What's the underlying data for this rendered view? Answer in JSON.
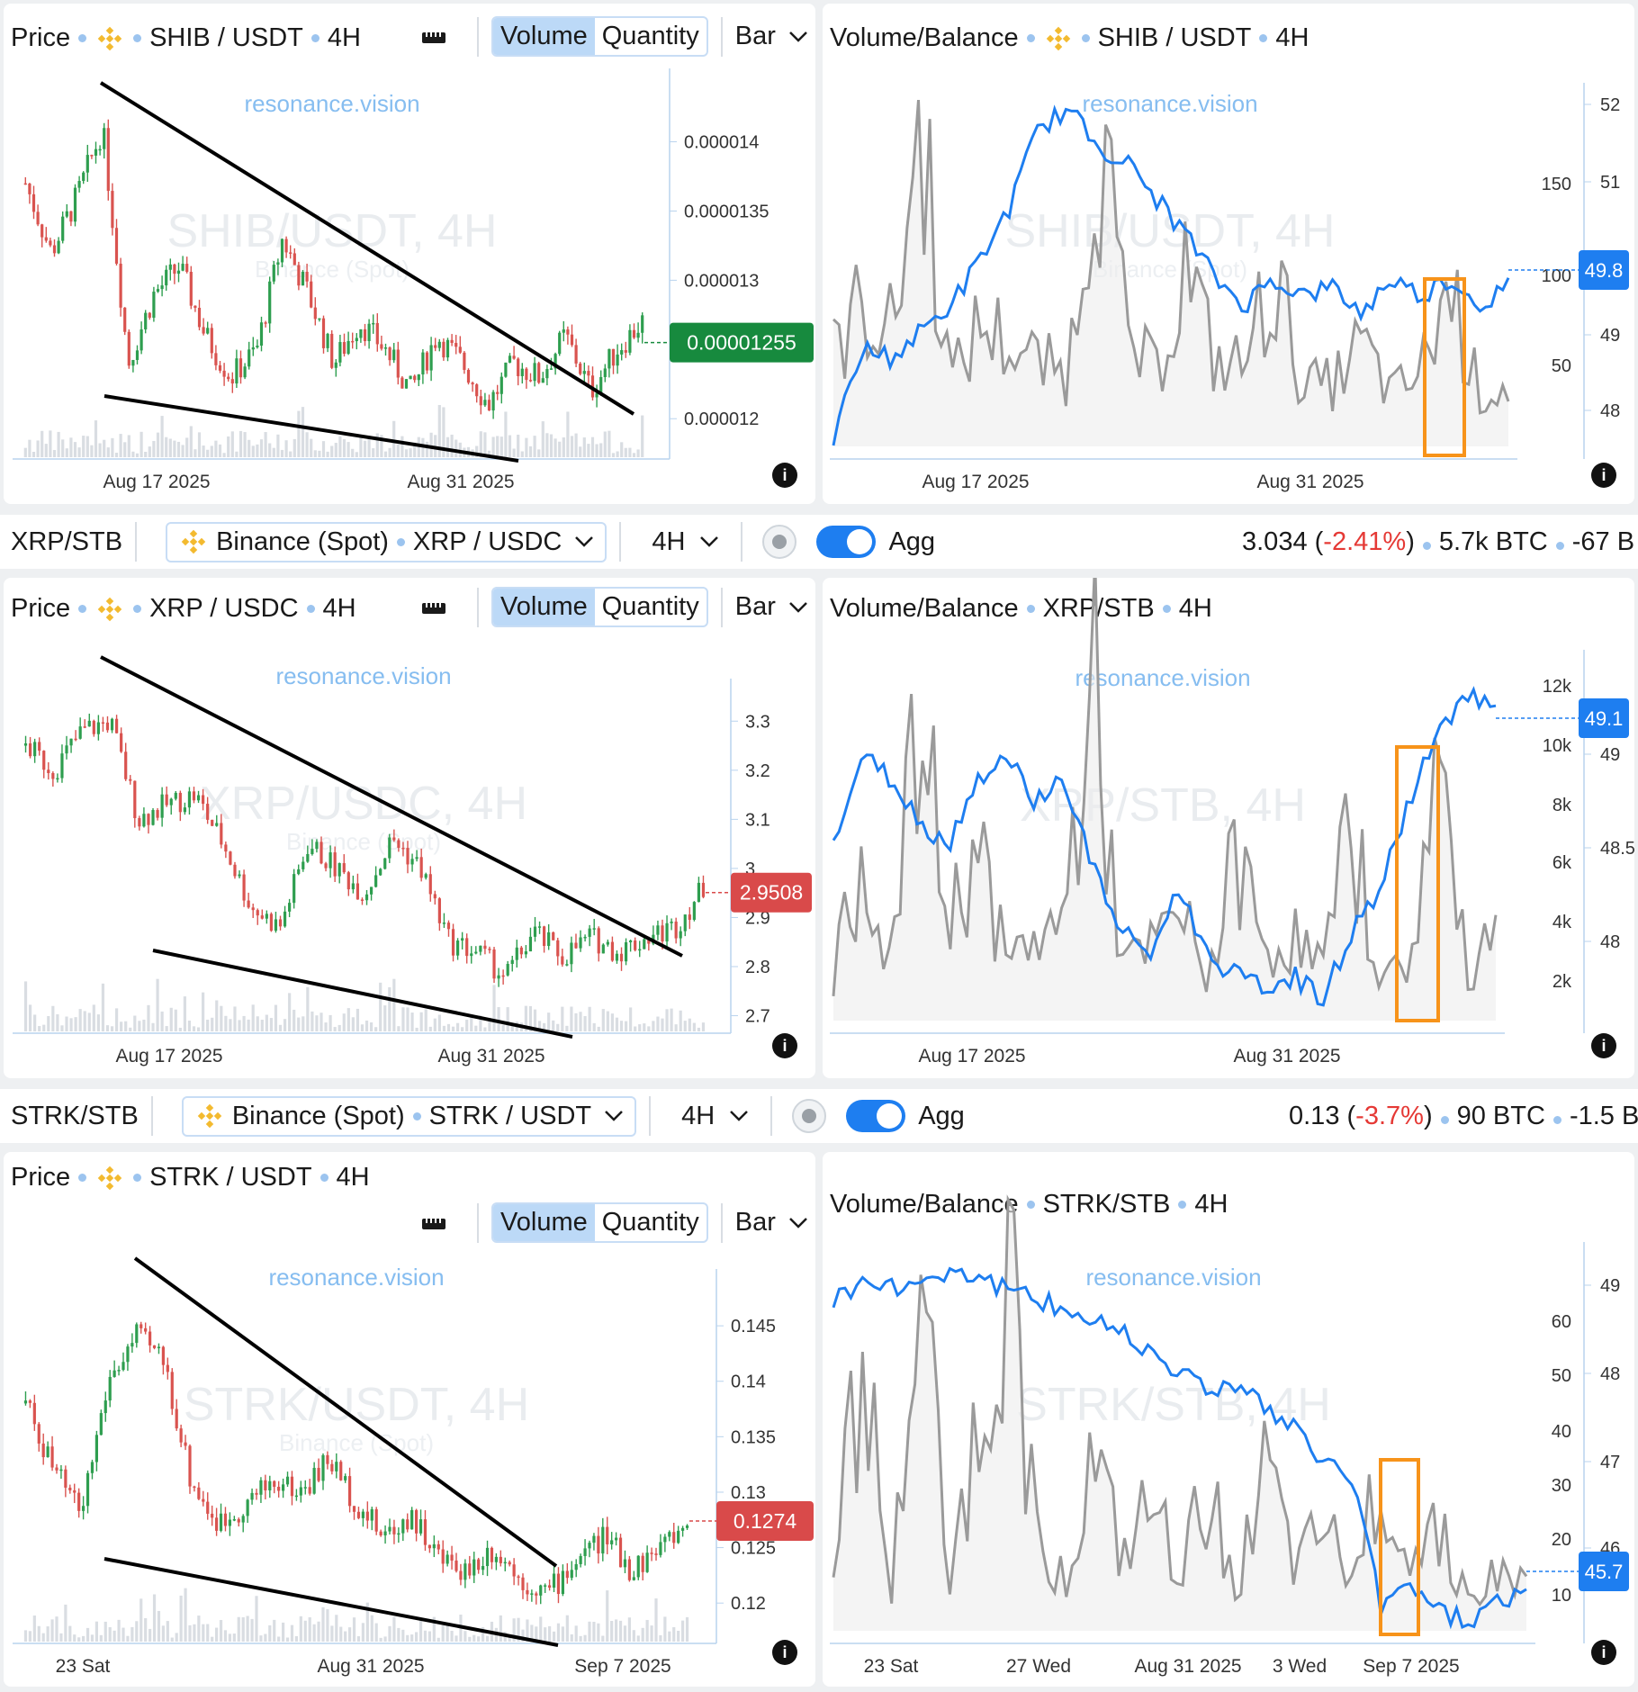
{
  "colors": {
    "accent": "#1e7ef0",
    "up": "#2e9e4f",
    "down": "#d9534f",
    "volume_line": "#9a9a9a",
    "highlight": "#f7931a",
    "price_tag_green": "#178a3e",
    "price_tag_red": "#d94a4a"
  },
  "watermark": "resonance.vision",
  "common": {
    "price_label": "Price",
    "volume_btn": "Volume",
    "quantity_btn": "Quantity",
    "bar_select": "Bar",
    "vb_label": "Volume/Balance",
    "timeframe": "4H",
    "agg_label": "Agg",
    "exchange": "Binance (Spot)",
    "info_icon": "info-icon"
  },
  "rows": [
    {
      "pair_name": null,
      "price_pair": "SHIB / USDT",
      "vb_pair": "SHIB / USDT",
      "watermark_big": "SHIB/USDT, 4H",
      "watermark_small": "Binance (Spot)",
      "vb_watermark_big": "SHIB/USDT, 4H",
      "vb_watermark_small": "Binance (Spot)",
      "price_tag": "0.00001255"
    },
    {
      "pair_name": "XRP/STB",
      "price_pair": "XRP / USDC",
      "vb_pair": "XRP/STB",
      "watermark_big": "XRP/USDC, 4H",
      "watermark_small": "Binance (Spot)",
      "vb_watermark_big": "XRP/STB, 4H",
      "vb_watermark_small": "",
      "price_tag": "2.9508",
      "bar": {
        "select": "XRP / USDC",
        "price": "3.034",
        "change": "-2.41%",
        "vol": "5.7k BTC",
        "extra": "-67 B"
      }
    },
    {
      "pair_name": "STRK/STB",
      "price_pair": "STRK / USDT",
      "vb_pair": "STRK/STB",
      "watermark_big": "STRK/USDT, 4H",
      "watermark_small": "Binance (Spot)",
      "vb_watermark_big": "STRK/STB, 4H",
      "vb_watermark_small": "",
      "price_tag": "0.1274",
      "bar": {
        "select": "STRK / USDT",
        "price": "0.13",
        "change": "-3.7%",
        "vol": "90 BTC",
        "extra": "-1.5 B"
      }
    }
  ],
  "chart_data": [
    {
      "type": "candlestick",
      "title": "Price • SHIB / USDT • 4H",
      "x_ticks": [
        "Aug 17 2025",
        "Aug 31 2025"
      ],
      "y_ticks": [
        "0.000014",
        "0.0000135",
        "0.000013",
        "0.000012"
      ],
      "ylim": [
        1.18e-05,
        1.44e-05
      ],
      "last_price": 1.255e-05,
      "annotations": [
        "descending wedge: upper trendline",
        "descending wedge: lower trendline"
      ],
      "series": [
        {
          "name": "close",
          "values": [
            1.37e-05,
            1.32e-05,
            1.36e-05,
            1.41e-05,
            1.24e-05,
            1.29e-05,
            1.31e-05,
            1.26e-05,
            1.23e-05,
            1.25e-05,
            1.33e-05,
            1.29e-05,
            1.24e-05,
            1.27e-05,
            1.25e-05,
            1.22e-05,
            1.26e-05,
            1.24e-05,
            1.21e-05,
            1.24e-05,
            1.23e-05,
            1.26e-05,
            1.22e-05,
            1.25e-05,
            1.27e-05
          ]
        }
      ]
    },
    {
      "type": "line",
      "title": "Volume/Balance • SHIB / USDT • 4H",
      "x_ticks": [
        "Aug 17 2025",
        "Aug 31 2025"
      ],
      "y_left_ticks": [
        "150",
        "100",
        "50"
      ],
      "y_right_ticks": [
        "52",
        "51",
        "49",
        "48"
      ],
      "last_balance": "49.8",
      "series": [
        {
          "name": "Balance",
          "values": [
            48.1,
            49.1,
            49.0,
            49.3,
            49.6,
            50.1,
            50.7,
            51.6,
            51.8,
            51.4,
            51.2,
            50.8,
            50.4,
            49.9,
            49.6,
            49.9,
            49.7,
            49.8,
            49.5,
            49.9,
            49.7,
            49.9,
            49.6,
            49.8
          ]
        },
        {
          "name": "Volume",
          "values": [
            45,
            70,
            55,
            160,
            30,
            60,
            50,
            40,
            35,
            165,
            50,
            35,
            90,
            40,
            40,
            85,
            30,
            30,
            50,
            25,
            35,
            80,
            25,
            30
          ]
        }
      ]
    },
    {
      "type": "candlestick",
      "title": "Price • XRP / USDC • 4H",
      "x_ticks": [
        "Aug 17 2025",
        "Aug 31 2025"
      ],
      "y_ticks": [
        "3.3",
        "3.2",
        "3.1",
        "3",
        "2.9",
        "2.8",
        "2.7"
      ],
      "ylim": [
        2.69,
        3.35
      ],
      "last_price": 2.9508,
      "series": [
        {
          "name": "close",
          "values": [
            3.25,
            3.2,
            3.28,
            3.3,
            3.1,
            3.13,
            3.15,
            3.05,
            2.92,
            2.88,
            3.05,
            3.0,
            2.95,
            3.06,
            3.0,
            2.85,
            2.83,
            2.78,
            2.87,
            2.82,
            2.86,
            2.83,
            2.86,
            2.88,
            2.96
          ]
        }
      ]
    },
    {
      "type": "line",
      "title": "Volume/Balance • XRP/STB • 4H",
      "x_ticks": [
        "Aug 17 2025",
        "Aug 31 2025"
      ],
      "y_left_ticks": [
        "12k",
        "10k",
        "8k",
        "6k",
        "4k",
        "2k"
      ],
      "y_right_ticks": [
        "49",
        "48.5",
        "48"
      ],
      "last_balance": "49.1",
      "series": [
        {
          "name": "Balance",
          "values": [
            48.5,
            48.9,
            48.8,
            48.6,
            48.5,
            48.8,
            48.9,
            48.7,
            48.8,
            48.4,
            48.1,
            48.0,
            48.3,
            48.0,
            47.9,
            47.85,
            47.9,
            47.8,
            48.1,
            48.3,
            48.7,
            49.0,
            49.2,
            49.1
          ]
        },
        {
          "name": "Volume",
          "values": [
            1500,
            6200,
            2000,
            11000,
            3500,
            6500,
            2000,
            3000,
            3500,
            12500,
            2000,
            2500,
            4000,
            1500,
            6000,
            2500,
            3000,
            2000,
            7000,
            1500,
            2000,
            9500,
            1500,
            3800
          ]
        }
      ]
    },
    {
      "type": "candlestick",
      "title": "Price • STRK / USDT • 4H",
      "x_ticks": [
        "23 Sat",
        "Aug 31 2025",
        "Sep 7 2025"
      ],
      "y_ticks": [
        "0.145",
        "0.14",
        "0.135",
        "0.13",
        "0.125",
        "0.12"
      ],
      "ylim": [
        0.1175,
        0.1485
      ],
      "last_price": 0.1274,
      "series": [
        {
          "name": "close",
          "values": [
            0.138,
            0.132,
            0.128,
            0.14,
            0.144,
            0.142,
            0.131,
            0.127,
            0.129,
            0.131,
            0.13,
            0.133,
            0.129,
            0.126,
            0.128,
            0.124,
            0.123,
            0.125,
            0.122,
            0.121,
            0.124,
            0.126,
            0.123,
            0.125,
            0.127
          ]
        }
      ]
    },
    {
      "type": "line",
      "title": "Volume/Balance • STRK/STB • 4H",
      "x_ticks": [
        "23 Sat",
        "27 Wed",
        "Aug 31 2025",
        "3 Wed",
        "Sep 7 2025"
      ],
      "y_left_ticks": [
        "60",
        "50",
        "40",
        "30",
        "20",
        "10"
      ],
      "y_right_ticks": [
        "49",
        "48",
        "47",
        "46"
      ],
      "last_balance": "45.7",
      "series": [
        {
          "name": "Balance",
          "values": [
            48.6,
            48.8,
            48.7,
            48.8,
            48.9,
            48.85,
            48.7,
            48.6,
            48.5,
            48.4,
            48.3,
            48.1,
            47.9,
            47.7,
            47.8,
            47.5,
            47.3,
            47.0,
            46.8,
            45.5,
            45.8,
            45.5,
            45.4,
            45.6,
            45.7
          ]
        },
        {
          "name": "Volume",
          "values": [
            15,
            50,
            5,
            62,
            10,
            35,
            64,
            20,
            8,
            30,
            12,
            22,
            10,
            25,
            8,
            28,
            10,
            18,
            8,
            30,
            12,
            20,
            5,
            10,
            8
          ]
        }
      ]
    }
  ]
}
